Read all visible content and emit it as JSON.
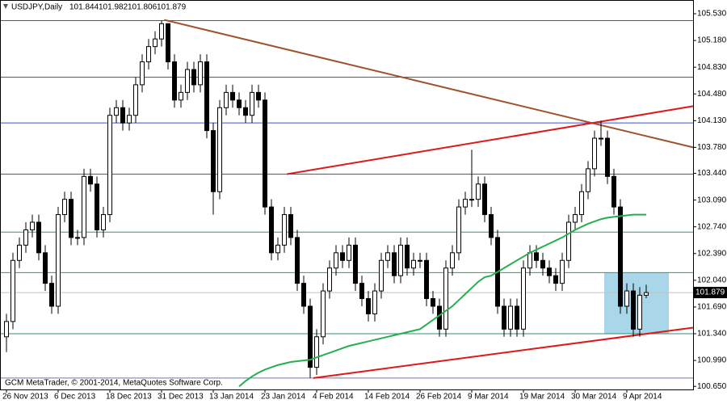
{
  "chart_data": {
    "type": "candlestick",
    "symbol": "USDJPY,Daily",
    "credit": "GCM MetaTrader, © 2001-2014, MetaQuotes Software Corp.",
    "categories": [
      "26 Nov 2013",
      null,
      null,
      null,
      null,
      null,
      null,
      null,
      "6 Dec 2013",
      null,
      null,
      null,
      null,
      null,
      null,
      null,
      "18 Dec 2013",
      null,
      null,
      null,
      null,
      null,
      null,
      null,
      "31 Dec 2013",
      null,
      null,
      null,
      null,
      null,
      null,
      null,
      "13 Jan 2014",
      null,
      null,
      null,
      null,
      null,
      null,
      null,
      "23 Jan 2014",
      null,
      null,
      null,
      null,
      null,
      null,
      null,
      "4 Feb 2014",
      null,
      null,
      null,
      null,
      null,
      null,
      null,
      "14 Feb 2014",
      null,
      null,
      null,
      null,
      null,
      null,
      null,
      "26 Feb 2014",
      null,
      null,
      null,
      null,
      null,
      null,
      null,
      "9 Mar 2014",
      null,
      null,
      null,
      null,
      null,
      null,
      null,
      "19 Mar 2014",
      null,
      null,
      null,
      null,
      null,
      null,
      null,
      "30 Mar 2014",
      null,
      null,
      null,
      null,
      null,
      null,
      null,
      "9 Apr 2014",
      null,
      null,
      null
    ],
    "open": [
      101.3,
      101.5,
      102.3,
      102.5,
      102.7,
      102.8,
      102.4,
      102.0,
      101.7,
      102.9,
      103.1,
      102.6,
      102.6,
      103.4,
      103.3,
      102.7,
      102.9,
      104.2,
      104.3,
      104.1,
      104.2,
      104.6,
      104.9,
      105.1,
      105.2,
      105.4,
      104.9,
      104.4,
      104.5,
      104.8,
      104.6,
      104.9,
      104.0,
      103.2,
      104.3,
      104.5,
      104.4,
      104.3,
      104.2,
      104.5,
      104.4,
      103.0,
      102.4,
      102.5,
      102.9,
      102.6,
      102.0,
      101.7,
      100.9,
      101.3,
      101.9,
      102.2,
      102.4,
      102.3,
      102.5,
      102.0,
      101.8,
      101.6,
      101.9,
      102.3,
      102.4,
      102.1,
      102.5,
      102.2,
      102.3,
      102.3,
      101.8,
      101.7,
      101.4,
      102.2,
      102.4,
      103.0,
      103.1,
      103.1,
      103.3,
      102.9,
      102.6,
      101.7,
      101.4,
      101.7,
      101.4,
      102.2,
      102.4,
      102.3,
      102.2,
      102.1,
      102.0,
      102.3,
      102.8,
      102.9,
      103.2,
      103.5,
      103.9,
      103.9,
      103.4,
      103.0,
      101.7,
      101.9,
      101.4,
      101.844
    ],
    "high": [
      101.6,
      102.4,
      102.6,
      102.8,
      102.9,
      102.9,
      102.5,
      102.1,
      103.0,
      103.2,
      103.2,
      102.7,
      103.5,
      103.5,
      103.4,
      103.0,
      104.3,
      104.4,
      104.4,
      104.3,
      104.7,
      105.0,
      105.2,
      105.3,
      105.44,
      105.4,
      105.0,
      104.6,
      104.9,
      104.9,
      105.0,
      105.0,
      104.1,
      104.4,
      104.6,
      104.6,
      104.5,
      104.4,
      104.6,
      104.6,
      104.5,
      103.1,
      102.6,
      103.0,
      103.0,
      102.7,
      102.1,
      101.8,
      101.4,
      102.0,
      102.3,
      102.5,
      102.5,
      102.6,
      102.6,
      102.1,
      101.9,
      102.0,
      102.4,
      102.5,
      102.5,
      102.6,
      102.6,
      102.4,
      102.4,
      102.4,
      101.9,
      101.8,
      102.3,
      102.5,
      103.1,
      103.2,
      103.75,
      103.4,
      103.4,
      103.0,
      102.7,
      101.8,
      101.8,
      101.8,
      102.3,
      102.5,
      102.5,
      102.4,
      102.3,
      102.2,
      102.4,
      102.9,
      103.0,
      103.3,
      103.6,
      104.0,
      104.13,
      104.0,
      103.5,
      103.1,
      102.0,
      102.0,
      101.95,
      101.982
    ],
    "low": [
      101.1,
      101.4,
      102.2,
      102.4,
      102.6,
      102.3,
      101.9,
      101.6,
      101.6,
      102.8,
      102.5,
      102.5,
      102.5,
      103.2,
      102.6,
      102.6,
      102.8,
      104.1,
      104.0,
      104.0,
      104.1,
      104.5,
      104.8,
      105.0,
      105.1,
      104.8,
      104.3,
      104.3,
      104.4,
      104.5,
      104.5,
      103.9,
      102.9,
      103.1,
      104.2,
      104.3,
      104.2,
      104.1,
      104.1,
      104.3,
      102.9,
      102.3,
      102.3,
      102.4,
      102.5,
      101.9,
      101.6,
      100.76,
      100.8,
      101.2,
      101.8,
      102.1,
      102.2,
      102.2,
      101.9,
      101.7,
      101.5,
      101.5,
      101.8,
      102.2,
      102.0,
      102.0,
      102.1,
      102.1,
      102.2,
      101.7,
      101.6,
      101.3,
      101.3,
      102.1,
      102.3,
      102.9,
      103.0,
      103.0,
      102.8,
      102.5,
      101.6,
      101.3,
      101.3,
      101.3,
      101.3,
      102.1,
      102.2,
      102.1,
      102.0,
      101.9,
      101.9,
      102.2,
      102.7,
      102.8,
      103.1,
      103.4,
      103.8,
      103.3,
      102.9,
      101.6,
      101.6,
      101.3,
      101.3,
      101.806
    ],
    "close": [
      101.5,
      102.3,
      102.5,
      102.7,
      102.8,
      102.4,
      102.0,
      101.7,
      102.9,
      103.1,
      102.6,
      102.6,
      103.4,
      103.3,
      102.7,
      102.9,
      104.2,
      104.3,
      104.1,
      104.2,
      104.6,
      104.9,
      105.1,
      105.2,
      105.4,
      104.9,
      104.4,
      104.5,
      104.8,
      104.6,
      104.9,
      104.0,
      103.2,
      104.3,
      104.5,
      104.4,
      104.3,
      104.2,
      104.5,
      104.4,
      103.0,
      102.4,
      102.5,
      102.9,
      102.6,
      102.0,
      101.7,
      100.9,
      101.3,
      101.9,
      102.2,
      102.4,
      102.3,
      102.5,
      102.0,
      101.8,
      101.6,
      101.9,
      102.3,
      102.4,
      102.1,
      102.5,
      102.2,
      102.3,
      102.3,
      101.8,
      101.7,
      101.4,
      102.2,
      102.4,
      103.0,
      103.1,
      103.1,
      103.3,
      102.9,
      102.6,
      101.7,
      101.4,
      101.7,
      101.4,
      102.2,
      102.4,
      102.3,
      102.2,
      102.1,
      102.0,
      102.3,
      102.8,
      102.9,
      103.2,
      103.5,
      103.9,
      103.9,
      103.4,
      103.0,
      101.7,
      101.9,
      101.4,
      101.844,
      101.879
    ],
    "ma": {
      "color": "#27ae4f",
      "values": [
        null,
        null,
        null,
        null,
        null,
        null,
        null,
        null,
        null,
        null,
        null,
        null,
        null,
        null,
        null,
        null,
        null,
        null,
        null,
        null,
        null,
        null,
        null,
        null,
        null,
        null,
        null,
        null,
        null,
        null,
        null,
        null,
        null,
        null,
        null,
        null,
        100.65,
        100.72,
        100.78,
        100.83,
        100.87,
        100.9,
        100.93,
        100.95,
        100.97,
        100.98,
        100.99,
        101.0,
        101.03,
        101.06,
        101.09,
        101.12,
        101.15,
        101.18,
        101.2,
        101.22,
        101.24,
        101.26,
        101.28,
        101.3,
        101.32,
        101.34,
        101.36,
        101.38,
        101.4,
        101.46,
        101.52,
        101.58,
        101.64,
        101.7,
        101.78,
        101.86,
        101.94,
        102.02,
        102.08,
        102.1,
        102.15,
        102.2,
        102.25,
        102.3,
        102.35,
        102.4,
        102.44,
        102.48,
        102.52,
        102.56,
        102.6,
        102.65,
        102.7,
        102.74,
        102.78,
        102.81,
        102.84,
        102.86,
        102.87,
        102.88,
        102.89,
        102.9,
        102.9,
        102.9
      ]
    },
    "levels": [
      {
        "value": 105.44,
        "color": "#3a55d0"
      },
      {
        "value": 104.7,
        "color": "#3a55d0"
      },
      {
        "value": 104.1,
        "color": "#3a55d0"
      },
      {
        "value": 103.43,
        "color": "#3a55d0"
      },
      {
        "value": 102.67,
        "color": "#2e9e5a"
      },
      {
        "value": 102.14,
        "color": "#2e9e5a"
      },
      {
        "value": 101.34,
        "color": "#2e8f7a"
      },
      {
        "value": 100.76,
        "color": "#6a78b0"
      }
    ],
    "trendlines": [
      {
        "color": "#a0522d",
        "x": [
          24.4,
          106.25
        ],
        "y": [
          105.45,
          103.78
        ]
      },
      {
        "color": "#e01818",
        "x": [
          43.4,
          106.25
        ],
        "y": [
          103.43,
          104.32
        ]
      },
      {
        "color": "#e01818",
        "x": [
          47.5,
          106.25
        ],
        "y": [
          100.76,
          101.42
        ]
      }
    ],
    "zone": {
      "color": "#a9d6e8",
      "x": [
        92.5,
        102.5
      ],
      "y": [
        101.34,
        102.14
      ]
    },
    "ylim": [
      100.61,
      105.71
    ],
    "yticks": [
      {
        "value": 105.53,
        "label": "105.530"
      },
      {
        "value": 105.18,
        "label": "105.180"
      },
      {
        "value": 104.83,
        "label": "104.830"
      },
      {
        "value": 104.48,
        "label": "104.480"
      },
      {
        "value": 104.13,
        "label": "104.130"
      },
      {
        "value": 103.78,
        "label": "103.780"
      },
      {
        "value": 103.44,
        "label": "103.440"
      },
      {
        "value": 103.09,
        "label": "103.090"
      },
      {
        "value": 102.74,
        "label": "102.740"
      },
      {
        "value": 102.39,
        "label": "102.390"
      },
      {
        "value": 102.04,
        "label": "102.040"
      },
      {
        "value": 101.69,
        "label": "101.690"
      },
      {
        "value": 101.34,
        "label": "101.340"
      },
      {
        "value": 100.99,
        "label": "100.990"
      },
      {
        "value": 100.65,
        "label": "100.650"
      }
    ]
  }
}
